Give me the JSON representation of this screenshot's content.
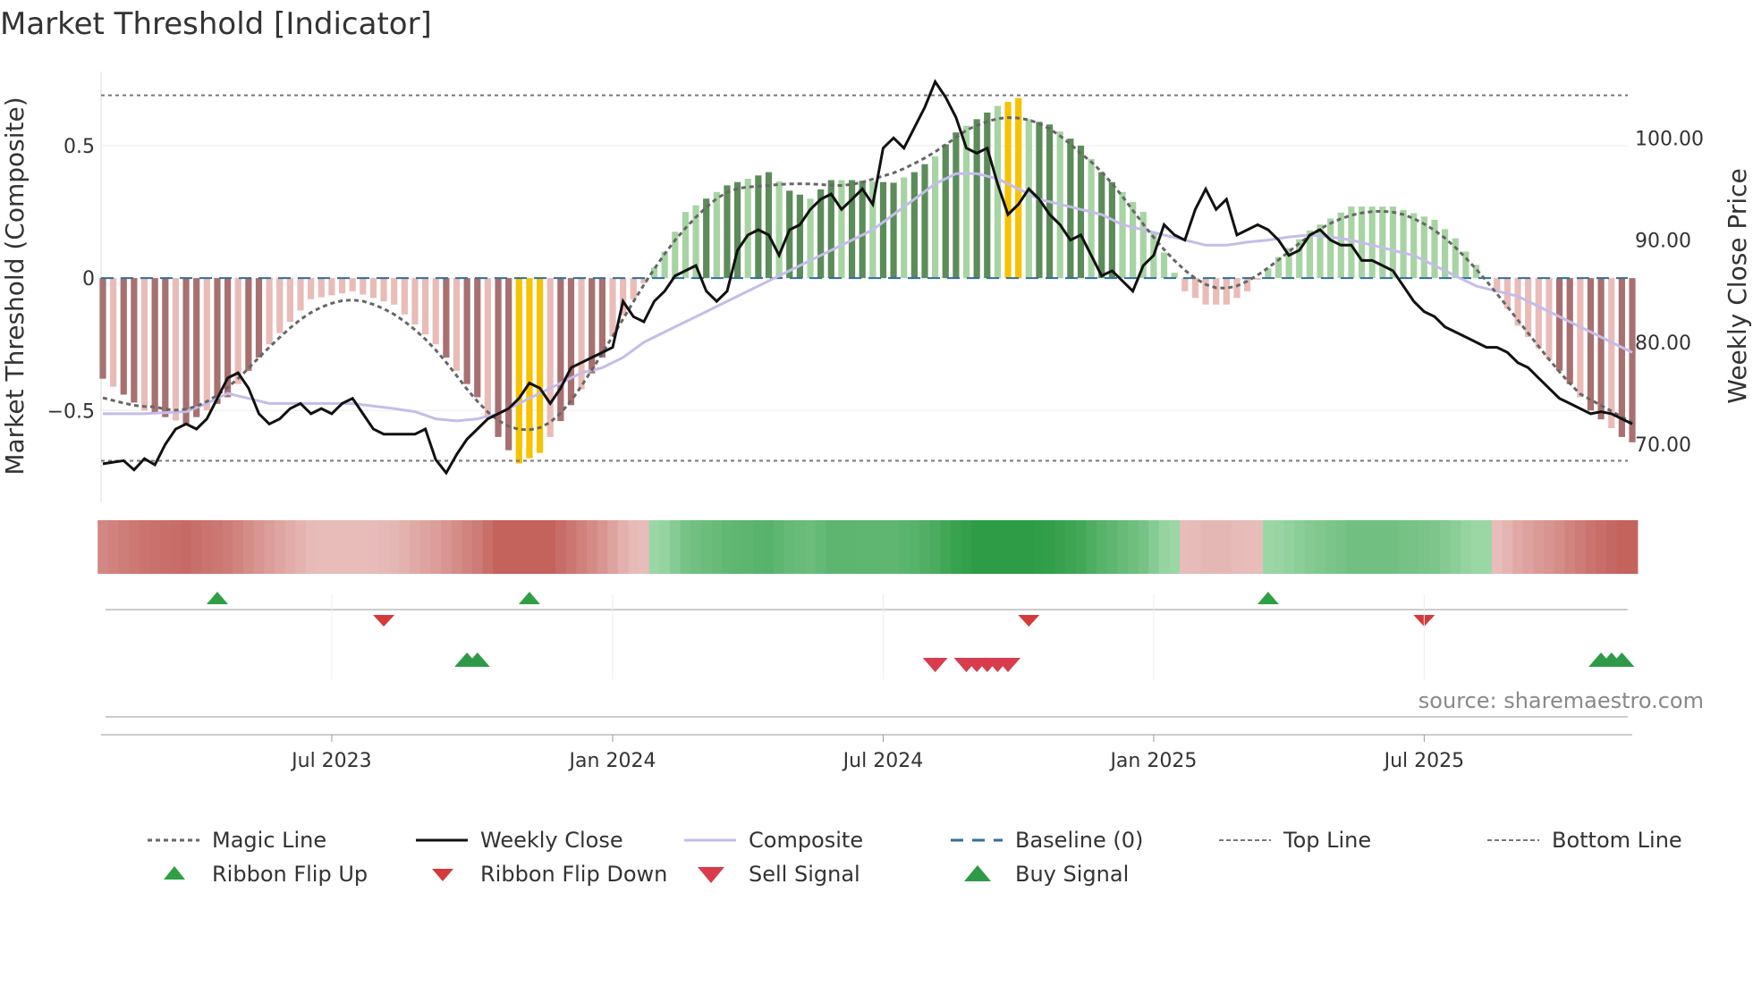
{
  "chart_data": {
    "type": "bar",
    "title": "Market Threshold [Indicator]",
    "ylabel": "Market Threshold (Composite)",
    "y2label": "Weekly Close Price",
    "ylim": [
      -0.84,
      0.78
    ],
    "y2lim": [
      64.5,
      106.5
    ],
    "yticks": [
      {
        "v": 0.5,
        "label": "0.5"
      },
      {
        "v": 0,
        "label": "0"
      },
      {
        "v": -0.5,
        "label": "−0.5"
      }
    ],
    "y2ticks": [
      {
        "v": 100,
        "label": "100.00"
      },
      {
        "v": 90,
        "label": "90.00"
      },
      {
        "v": 80,
        "label": "80.00"
      },
      {
        "v": 70,
        "label": "70.00"
      }
    ],
    "xticks": [
      {
        "i": 22,
        "label": "Jul 2023"
      },
      {
        "i": 49,
        "label": "Jan 2024"
      },
      {
        "i": 75,
        "label": "Jul 2024"
      },
      {
        "i": 101,
        "label": "Jan 2025"
      },
      {
        "i": 127,
        "label": "Jul 2025"
      }
    ],
    "n_weeks": 148,
    "top_line": 0.69,
    "bottom_line": -0.69,
    "source": "source: sharemaestro.com",
    "anchors": {
      "composite": [
        [
          0,
          -0.38
        ],
        [
          4,
          -0.5
        ],
        [
          8,
          -0.55
        ],
        [
          12,
          -0.45
        ],
        [
          16,
          -0.25
        ],
        [
          20,
          -0.08
        ],
        [
          24,
          -0.05
        ],
        [
          28,
          -0.1
        ],
        [
          32,
          -0.25
        ],
        [
          36,
          -0.45
        ],
        [
          38,
          -0.6
        ],
        [
          40,
          -0.7
        ],
        [
          42,
          -0.66
        ],
        [
          46,
          -0.42
        ],
        [
          48,
          -0.3
        ],
        [
          50,
          -0.14
        ],
        [
          54,
          0.1
        ],
        [
          56,
          0.25
        ],
        [
          60,
          0.35
        ],
        [
          64,
          0.4
        ],
        [
          66,
          0.33
        ],
        [
          68,
          0.3
        ],
        [
          70,
          0.37
        ],
        [
          72,
          0.37
        ],
        [
          76,
          0.36
        ],
        [
          78,
          0.4
        ],
        [
          80,
          0.46
        ],
        [
          82,
          0.55
        ],
        [
          86,
          0.65
        ],
        [
          88,
          0.68
        ],
        [
          89,
          0.6
        ],
        [
          91,
          0.58
        ],
        [
          94,
          0.5
        ],
        [
          96,
          0.4
        ],
        [
          100,
          0.25
        ],
        [
          103,
          0.02
        ],
        [
          104,
          -0.05
        ],
        [
          106,
          -0.1
        ],
        [
          108,
          -0.1
        ],
        [
          110,
          -0.05
        ],
        [
          113,
          0.08
        ],
        [
          116,
          0.18
        ],
        [
          120,
          0.27
        ],
        [
          124,
          0.27
        ],
        [
          128,
          0.22
        ],
        [
          130,
          0.15
        ],
        [
          132,
          0.05
        ],
        [
          134,
          -0.05
        ],
        [
          136,
          -0.18
        ],
        [
          140,
          -0.35
        ],
        [
          143,
          -0.5
        ],
        [
          146,
          -0.6
        ],
        [
          147,
          -0.62
        ]
      ],
      "weekly_close": [
        [
          0,
          68.1
        ],
        [
          2,
          68.4
        ],
        [
          3,
          67.5
        ],
        [
          4,
          68.6
        ],
        [
          5,
          68.0
        ],
        [
          6,
          70.0
        ],
        [
          7,
          71.5
        ],
        [
          8,
          72.0
        ],
        [
          9,
          71.5
        ],
        [
          10,
          72.5
        ],
        [
          11,
          74.5
        ],
        [
          12,
          76.5
        ],
        [
          13,
          77.0
        ],
        [
          14,
          75.5
        ],
        [
          15,
          73.0
        ],
        [
          16,
          72.0
        ],
        [
          17,
          72.5
        ],
        [
          18,
          73.5
        ],
        [
          19,
          74.0
        ],
        [
          20,
          73.0
        ],
        [
          21,
          73.5
        ],
        [
          22,
          73.0
        ],
        [
          23,
          74.0
        ],
        [
          24,
          74.5
        ],
        [
          25,
          73.0
        ],
        [
          26,
          71.5
        ],
        [
          27,
          71.0
        ],
        [
          28,
          71.0
        ],
        [
          29,
          71.0
        ],
        [
          30,
          71.0
        ],
        [
          31,
          71.5
        ],
        [
          32,
          68.5
        ],
        [
          33,
          67.2
        ],
        [
          34,
          69.0
        ],
        [
          35,
          70.5
        ],
        [
          36,
          71.5
        ],
        [
          37,
          72.5
        ],
        [
          38,
          73.0
        ],
        [
          39,
          73.5
        ],
        [
          40,
          74.5
        ],
        [
          41,
          76.0
        ],
        [
          42,
          75.5
        ],
        [
          43,
          74.0
        ],
        [
          44,
          75.5
        ],
        [
          45,
          77.5
        ],
        [
          46,
          78.0
        ],
        [
          47,
          78.5
        ],
        [
          48,
          79.0
        ],
        [
          49,
          79.5
        ],
        [
          50,
          84.0
        ],
        [
          51,
          82.5
        ],
        [
          52,
          82.0
        ],
        [
          53,
          84.0
        ],
        [
          54,
          85.0
        ],
        [
          55,
          86.5
        ],
        [
          56,
          87.0
        ],
        [
          57,
          87.5
        ],
        [
          58,
          85.0
        ],
        [
          59,
          84.0
        ],
        [
          60,
          85.0
        ],
        [
          61,
          89.0
        ],
        [
          62,
          90.5
        ],
        [
          63,
          91.0
        ],
        [
          64,
          90.5
        ],
        [
          65,
          88.5
        ],
        [
          66,
          91.0
        ],
        [
          67,
          91.5
        ],
        [
          68,
          93.0
        ],
        [
          69,
          94.0
        ],
        [
          70,
          94.5
        ],
        [
          71,
          93.0
        ],
        [
          72,
          94.0
        ],
        [
          73,
          95.0
        ],
        [
          74,
          93.5
        ],
        [
          75,
          99.0
        ],
        [
          76,
          100.0
        ],
        [
          77,
          99.0
        ],
        [
          78,
          101.0
        ],
        [
          79,
          103.0
        ],
        [
          80,
          105.5
        ],
        [
          81,
          104.0
        ],
        [
          82,
          102.0
        ],
        [
          83,
          99.0
        ],
        [
          84,
          98.5
        ],
        [
          85,
          99.0
        ],
        [
          86,
          95.5
        ],
        [
          87,
          92.5
        ],
        [
          88,
          93.5
        ],
        [
          89,
          95.0
        ],
        [
          90,
          94.0
        ],
        [
          91,
          92.5
        ],
        [
          92,
          91.5
        ],
        [
          93,
          90.0
        ],
        [
          94,
          90.5
        ],
        [
          95,
          88.5
        ],
        [
          96,
          86.5
        ],
        [
          97,
          87.0
        ],
        [
          98,
          86.0
        ],
        [
          99,
          85.0
        ],
        [
          100,
          87.5
        ],
        [
          101,
          88.5
        ],
        [
          102,
          91.5
        ],
        [
          103,
          90.5
        ],
        [
          104,
          90.0
        ],
        [
          105,
          93.0
        ],
        [
          106,
          95.0
        ],
        [
          107,
          93.0
        ],
        [
          108,
          94.0
        ],
        [
          109,
          90.5
        ],
        [
          110,
          91.0
        ],
        [
          111,
          91.5
        ],
        [
          112,
          91.0
        ],
        [
          113,
          90.0
        ],
        [
          114,
          88.5
        ],
        [
          115,
          89.0
        ],
        [
          116,
          90.5
        ],
        [
          117,
          91.0
        ],
        [
          118,
          90.0
        ],
        [
          119,
          89.5
        ],
        [
          120,
          89.5
        ],
        [
          121,
          88.0
        ],
        [
          122,
          88.0
        ],
        [
          123,
          87.5
        ],
        [
          124,
          87.0
        ],
        [
          125,
          85.5
        ],
        [
          126,
          84.0
        ],
        [
          127,
          83.0
        ],
        [
          128,
          82.5
        ],
        [
          129,
          81.5
        ],
        [
          130,
          81.0
        ],
        [
          131,
          80.5
        ],
        [
          132,
          80.0
        ],
        [
          133,
          79.5
        ],
        [
          134,
          79.5
        ],
        [
          135,
          79.0
        ],
        [
          136,
          78.0
        ],
        [
          137,
          77.5
        ],
        [
          138,
          76.5
        ],
        [
          139,
          75.5
        ],
        [
          140,
          74.5
        ],
        [
          141,
          74.0
        ],
        [
          142,
          73.5
        ],
        [
          143,
          73.0
        ],
        [
          144,
          73.2
        ],
        [
          145,
          73.0
        ],
        [
          146,
          72.5
        ],
        [
          147,
          72.0
        ]
      ],
      "smooth_price": [
        [
          0,
          73.0
        ],
        [
          4,
          73.0
        ],
        [
          8,
          73.2
        ],
        [
          10,
          74.0
        ],
        [
          12,
          75.0
        ],
        [
          14,
          74.5
        ],
        [
          16,
          74.0
        ],
        [
          20,
          74.0
        ],
        [
          24,
          74.0
        ],
        [
          28,
          73.5
        ],
        [
          30,
          73.2
        ],
        [
          32,
          72.5
        ],
        [
          34,
          72.3
        ],
        [
          36,
          72.5
        ],
        [
          38,
          73.0
        ],
        [
          40,
          74.0
        ],
        [
          42,
          75.0
        ],
        [
          44,
          76.0
        ],
        [
          46,
          77.0
        ],
        [
          48,
          77.5
        ],
        [
          50,
          78.5
        ],
        [
          52,
          80.0
        ],
        [
          54,
          81.0
        ],
        [
          56,
          82.0
        ],
        [
          58,
          83.0
        ],
        [
          60,
          84.0
        ],
        [
          62,
          85.0
        ],
        [
          64,
          86.0
        ],
        [
          66,
          87.0
        ],
        [
          68,
          88.0
        ],
        [
          70,
          89.0
        ],
        [
          72,
          90.0
        ],
        [
          74,
          91.0
        ],
        [
          76,
          92.5
        ],
        [
          78,
          94.0
        ],
        [
          80,
          95.5
        ],
        [
          82,
          96.5
        ],
        [
          84,
          96.5
        ],
        [
          86,
          96.0
        ],
        [
          88,
          95.0
        ],
        [
          90,
          94.0
        ],
        [
          92,
          93.5
        ],
        [
          94,
          93.0
        ],
        [
          96,
          92.5
        ],
        [
          98,
          91.5
        ],
        [
          100,
          91.0
        ],
        [
          102,
          90.5
        ],
        [
          104,
          90.0
        ],
        [
          106,
          89.5
        ],
        [
          108,
          89.5
        ],
        [
          110,
          89.8
        ],
        [
          112,
          90.0
        ],
        [
          114,
          90.3
        ],
        [
          116,
          90.5
        ],
        [
          118,
          90.3
        ],
        [
          120,
          90.0
        ],
        [
          122,
          89.5
        ],
        [
          124,
          89.0
        ],
        [
          126,
          88.5
        ],
        [
          128,
          87.5
        ],
        [
          130,
          86.5
        ],
        [
          132,
          85.5
        ],
        [
          134,
          85.0
        ],
        [
          136,
          84.5
        ],
        [
          138,
          83.5
        ],
        [
          140,
          82.5
        ],
        [
          142,
          81.5
        ],
        [
          144,
          80.5
        ],
        [
          146,
          79.5
        ],
        [
          147,
          79.0
        ]
      ]
    },
    "ribbon_flip_up": [
      11,
      41,
      112
    ],
    "ribbon_flip_down": [
      27,
      89,
      127
    ],
    "sell_signals": [
      80,
      83,
      84,
      85,
      86,
      87
    ],
    "buy_signals": [
      35,
      36,
      144,
      145,
      146
    ],
    "legend": [
      {
        "label": "Magic Line"
      },
      {
        "label": "Weekly Close"
      },
      {
        "label": "Composite"
      },
      {
        "label": "Baseline (0)"
      },
      {
        "label": "Top Line"
      },
      {
        "label": "Bottom Line"
      },
      {
        "label": "Ribbon Flip Up"
      },
      {
        "label": "Ribbon Flip Down"
      },
      {
        "label": "Sell Signal"
      },
      {
        "label": "Buy Signal"
      }
    ],
    "colors": {
      "dark_red": "#a87070",
      "light_red": "#e9bcb8",
      "dark_green": "#5c8c5a",
      "light_green": "#a8d4a4",
      "yellow": "#f7c200",
      "magic": "#666666",
      "close": "#111111",
      "composite": "#c4bdea",
      "baseline": "#2f6f9a",
      "flip_up": "#2ea043",
      "flip_down": "#d43a3a",
      "sell": "#d93c4d",
      "buy": "#2e9a48"
    }
  }
}
